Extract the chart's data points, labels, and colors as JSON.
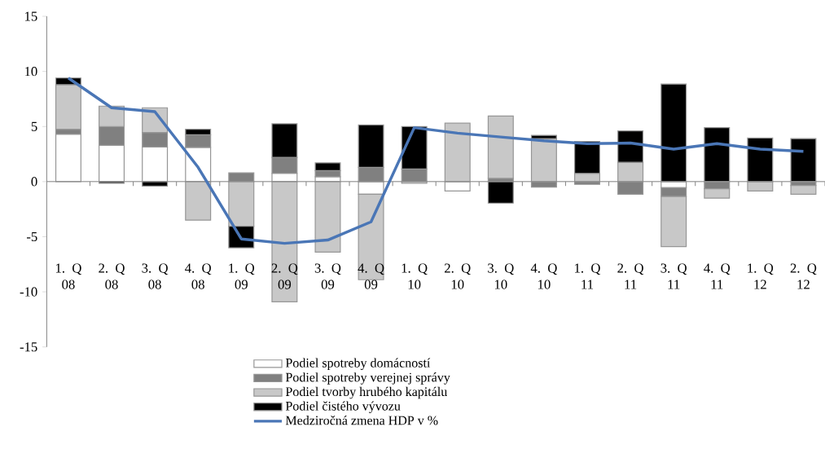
{
  "chart_data": {
    "type": "bar",
    "stacked": true,
    "categories": [
      "1. Q 08",
      "2. Q 08",
      "3. Q 08",
      "4. Q 08",
      "1. Q 09",
      "2. Q 09",
      "3. Q 09",
      "4. Q 09",
      "1. Q 10",
      "2. Q 10",
      "3. Q 10",
      "4. Q 10",
      "1. Q 11",
      "2. Q 11",
      "3. Q 11",
      "4. Q 11",
      "1. Q 12",
      "2. Q 12"
    ],
    "series": [
      {
        "name": "Podiel spotreby domácností",
        "color": "#ffffff",
        "values": [
          4.3,
          3.3,
          3.15,
          3.1,
          0,
          0.75,
          0.45,
          -1.15,
          -0.15,
          -0.85,
          0,
          0,
          0,
          0,
          -0.55,
          0,
          0,
          0
        ]
      },
      {
        "name": "Podiel spotreby verejnej správy",
        "color": "#808080",
        "values": [
          0.45,
          1.7,
          1.3,
          1.15,
          0.8,
          1.45,
          0.55,
          1.3,
          1.15,
          0,
          0.3,
          -0.5,
          -0.25,
          -1.15,
          -0.8,
          -0.65,
          0,
          -0.35
        ]
      },
      {
        "name": "Podiel tvorby hrubého kapitálu",
        "color": "#c8c8c8",
        "values": [
          4.05,
          1.85,
          2.25,
          -3.5,
          -4.05,
          -10.9,
          -6.4,
          -7.75,
          0,
          5.3,
          5.65,
          3.9,
          0.75,
          1.75,
          -4.55,
          -0.85,
          -0.85,
          -0.8
        ]
      },
      {
        "name": "Podiel čistého vývozu",
        "color": "#000000",
        "values": [
          0.6,
          -0.15,
          -0.4,
          0.5,
          -1.95,
          3.05,
          0.7,
          3.85,
          3.85,
          0,
          -1.95,
          0.3,
          2.9,
          2.85,
          8.85,
          4.9,
          3.95,
          3.9
        ]
      },
      {
        "name": "Medziročná zmena HDP  v %",
        "type": "line",
        "color": "#4a76b6",
        "marker": "none",
        "line_style": "solid",
        "values": [
          9.4,
          6.7,
          6.35,
          1.3,
          -5.2,
          -5.6,
          -5.3,
          -3.65,
          4.9,
          4.4,
          4.05,
          3.7,
          3.45,
          3.5,
          2.95,
          3.45,
          2.95,
          2.75
        ]
      }
    ],
    "ylim": [
      -15,
      15
    ],
    "yticks": [
      -15,
      -10,
      -5,
      0,
      5,
      10,
      15
    ],
    "legend": "bottom"
  }
}
